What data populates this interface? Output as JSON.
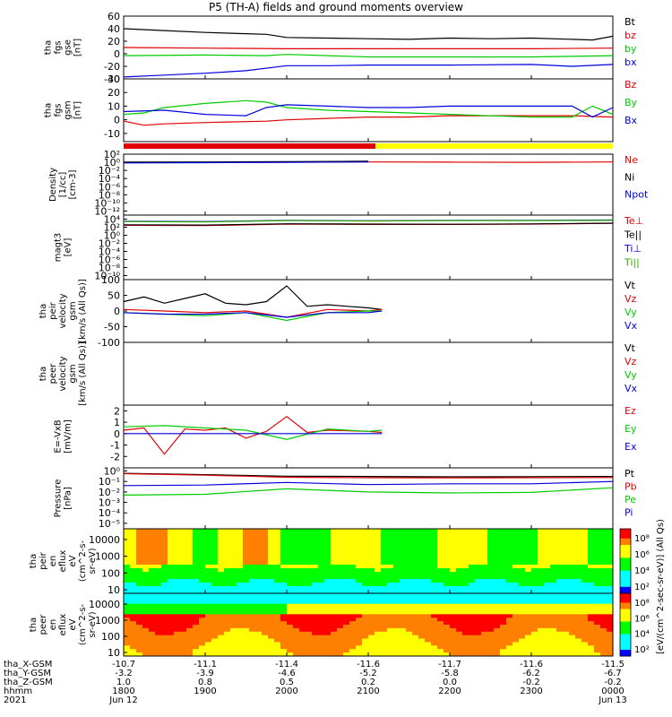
{
  "title": "P5 (TH-A) fields and ground moments overview",
  "colors": {
    "black": "#000000",
    "red": "#e00000",
    "green": "#00cc00",
    "blue": "#0000dd",
    "yellow": "#ffff00",
    "dark_green": "#33aa00"
  },
  "chart_data": [
    {
      "type": "line",
      "panel": "fgs-gse",
      "ylabel": [
        "tha",
        "fgs",
        "gse",
        "[nT]"
      ],
      "ylim": [
        -40,
        60
      ],
      "ytick_labels": [
        "60",
        "40",
        "20",
        "0",
        "-20",
        "-40"
      ],
      "ytick_values": [
        60,
        40,
        20,
        0,
        -20,
        -40
      ],
      "series": [
        {
          "name": "Bt",
          "color": "black",
          "x": [
            1800,
            1830,
            1900,
            1930,
            1945,
            2000,
            2030,
            2100,
            2130,
            2200,
            2230,
            2300,
            2330,
            2345,
            0
          ],
          "values": [
            40,
            37,
            34,
            32,
            31,
            26,
            25,
            24,
            23,
            25,
            24,
            25,
            23,
            22,
            28
          ]
        },
        {
          "name": "bz",
          "color": "red",
          "x": [
            1800,
            1900,
            2000,
            2100,
            2200,
            2300,
            0
          ],
          "values": [
            10,
            9,
            8,
            8,
            8,
            8,
            9
          ]
        },
        {
          "name": "by",
          "color": "green",
          "x": [
            1800,
            1900,
            1945,
            2000,
            2100,
            2200,
            2300,
            0
          ],
          "values": [
            -3,
            -2,
            -3,
            -1,
            -5,
            -5,
            -5,
            -3
          ]
        },
        {
          "name": "bx",
          "color": "blue",
          "x": [
            1800,
            1830,
            1900,
            1930,
            2000,
            2030,
            2100,
            2200,
            2300,
            2330,
            0
          ],
          "values": [
            -37,
            -34,
            -31,
            -27,
            -19,
            -19,
            -18,
            -18,
            -17,
            -20,
            -17
          ]
        }
      ]
    },
    {
      "type": "line",
      "panel": "fgs-gsm",
      "ylabel": [
        "tha",
        "fgs",
        "gsm",
        "[nT]"
      ],
      "ylim": [
        -16,
        30
      ],
      "ytick_labels": [
        "30",
        "20",
        "10",
        "0",
        "-10"
      ],
      "ytick_values": [
        30,
        20,
        10,
        0,
        -10
      ],
      "series": [
        {
          "name": "Bz",
          "color": "red",
          "x": [
            1800,
            1815,
            1830,
            1900,
            1945,
            2000,
            2030,
            2100,
            2130,
            2200,
            2230,
            2300,
            2330,
            0
          ],
          "values": [
            -1,
            -4,
            -3,
            -2,
            -1,
            0,
            1,
            2,
            2,
            3,
            3,
            3,
            3,
            2
          ]
        },
        {
          "name": "By",
          "color": "green",
          "x": [
            1800,
            1815,
            1830,
            1900,
            1930,
            1945,
            2000,
            2030,
            2100,
            2130,
            2200,
            2300,
            2330,
            2345,
            0
          ],
          "values": [
            4,
            5,
            9,
            12,
            14,
            13,
            9,
            7,
            6,
            5,
            4,
            2,
            2,
            10,
            4
          ]
        },
        {
          "name": "Bx",
          "color": "blue",
          "x": [
            1800,
            1830,
            1900,
            1930,
            1945,
            2000,
            2030,
            2100,
            2130,
            2200,
            2230,
            2300,
            2330,
            2345,
            0
          ],
          "values": [
            6,
            7,
            4,
            3,
            9,
            11,
            10,
            9,
            9,
            10,
            10,
            10,
            10,
            2,
            9
          ]
        }
      ]
    },
    {
      "type": "line",
      "panel": "density",
      "scale": "log",
      "ylabel": [
        "Density",
        "[1/cc]",
        "[cm-3]"
      ],
      "ylim": [
        1e-13,
        100
      ],
      "ytick_labels": [
        "10²",
        "10⁰",
        "10⁻²",
        "10⁻⁴",
        "10⁻⁶",
        "10⁻⁸",
        "10⁻¹⁰",
        "10⁻¹²"
      ],
      "ytick_values": [
        100,
        1,
        0.01,
        0.0001,
        1e-06,
        1e-08,
        1e-10,
        1e-12
      ],
      "series": [
        {
          "name": "Ne",
          "color": "red",
          "x": [
            1800,
            1900,
            2000,
            2100,
            2200,
            2300,
            0
          ],
          "values": [
            0.9,
            1,
            1.1,
            1.2,
            1.1,
            1.0,
            1.2
          ]
        },
        {
          "name": "Ni",
          "color": "black",
          "x": [
            1800,
            1900,
            2000,
            2100
          ],
          "values": [
            1.1,
            1.2,
            1.4,
            1.8
          ]
        },
        {
          "name": "Npot",
          "color": "blue",
          "x": [
            1800,
            1900,
            2000,
            2100
          ],
          "values": [
            0.7,
            0.8,
            1.0,
            1.2
          ]
        }
      ]
    },
    {
      "type": "line",
      "panel": "temperature",
      "scale": "log",
      "ylabel": [
        "magt3",
        "[eV]"
      ],
      "ylim": [
        1e-11,
        100000
      ],
      "ytick_labels": [
        "10⁴",
        "10²",
        "10⁰",
        "10⁻²",
        "10⁻⁴",
        "10⁻⁶",
        "10⁻⁸",
        "10⁻¹⁰"
      ],
      "ytick_values": [
        10000,
        100,
        1,
        0.01,
        0.0001,
        1e-06,
        1e-08,
        1e-10
      ],
      "series": [
        {
          "name": "Te⊥",
          "color": "red",
          "x": [
            1800,
            1900,
            2000,
            2100,
            2200,
            2300,
            0
          ],
          "values": [
            300,
            250,
            600,
            500,
            500,
            600,
            900
          ]
        },
        {
          "name": "Te||",
          "color": "black",
          "x": [
            1800,
            1900,
            2000,
            2100,
            2200,
            2300,
            0
          ],
          "values": [
            400,
            350,
            700,
            600,
            550,
            650,
            1000
          ]
        },
        {
          "name": "Ti⊥",
          "color": "blue",
          "x": [
            1800,
            1900,
            2000,
            2100,
            2200,
            2300,
            0
          ],
          "values": [
            3000,
            2500,
            5000,
            4000,
            5000,
            5000,
            6000
          ]
        },
        {
          "name": "Ti||",
          "color": "dark_green",
          "x": [
            1800,
            1900,
            2000,
            2100,
            2200,
            2300,
            0
          ],
          "values": [
            2500,
            2000,
            4500,
            3500,
            4500,
            4500,
            5000
          ]
        }
      ]
    },
    {
      "type": "line",
      "panel": "peir-velocity",
      "ylabel": [
        "tha",
        "peir",
        "velocity",
        "gsm",
        "[km/s (All Qs)]"
      ],
      "ylim": [
        -100,
        100
      ],
      "ytick_labels": [
        "100",
        "50",
        "0",
        "-50",
        "-100"
      ],
      "ytick_values": [
        100,
        50,
        0,
        -50,
        -100
      ],
      "series": [
        {
          "name": "Vt",
          "color": "black",
          "x": [
            1800,
            1815,
            1830,
            1845,
            1900,
            1915,
            1930,
            1945,
            2000,
            2015,
            2030,
            2045,
            2100,
            2110
          ],
          "values": [
            30,
            45,
            25,
            40,
            55,
            25,
            20,
            30,
            80,
            15,
            20,
            15,
            10,
            5
          ]
        },
        {
          "name": "Vz",
          "color": "red",
          "x": [
            1800,
            1830,
            1900,
            1930,
            2000,
            2030,
            2100,
            2110
          ],
          "values": [
            5,
            0,
            -5,
            0,
            -20,
            5,
            0,
            5
          ]
        },
        {
          "name": "Vy",
          "color": "green",
          "x": [
            1800,
            1830,
            1900,
            1930,
            2000,
            2030,
            2100,
            2110
          ],
          "values": [
            -5,
            -10,
            -15,
            -5,
            -30,
            -5,
            0,
            0
          ]
        },
        {
          "name": "Vx",
          "color": "blue",
          "x": [
            1800,
            1830,
            1900,
            1930,
            2000,
            2030,
            2100,
            2110
          ],
          "values": [
            -5,
            -10,
            -10,
            -5,
            -20,
            -5,
            -5,
            0
          ]
        }
      ]
    },
    {
      "type": "line",
      "panel": "peer-velocity",
      "ylabel": [
        "tha",
        "peer",
        "velocity",
        "gsm",
        "[km/s (All Qs)]"
      ],
      "series": [
        {
          "name": "Vt",
          "color": "black"
        },
        {
          "name": "Vz",
          "color": "red"
        },
        {
          "name": "Vy",
          "color": "green"
        },
        {
          "name": "Vx",
          "color": "blue"
        }
      ]
    },
    {
      "type": "line",
      "panel": "e-field",
      "ylabel": [
        "E=-VxB",
        "[mV/m]"
      ],
      "ylim": [
        -3,
        2.5
      ],
      "ytick_labels": [
        "2",
        "1",
        "0",
        "-1",
        "-2"
      ],
      "ytick_values": [
        2,
        1,
        0,
        -1,
        -2
      ],
      "series": [
        {
          "name": "Ez",
          "color": "red",
          "x": [
            1800,
            1815,
            1830,
            1845,
            1900,
            1915,
            1930,
            1945,
            2000,
            2015,
            2030,
            2100,
            2110
          ],
          "values": [
            0.3,
            0.5,
            -1.8,
            0.4,
            0.3,
            0.5,
            -0.4,
            0.2,
            1.5,
            0.1,
            0.3,
            0.2,
            0.1
          ]
        },
        {
          "name": "Ey",
          "color": "green",
          "x": [
            1800,
            1830,
            1900,
            1930,
            2000,
            2030,
            2100,
            2110
          ],
          "values": [
            0.6,
            0.7,
            0.5,
            0.3,
            -0.5,
            0.4,
            0.2,
            0.3
          ]
        },
        {
          "name": "Ex",
          "color": "blue",
          "x": [
            1800,
            1900,
            2000,
            2100,
            2110
          ],
          "values": [
            0,
            0,
            0,
            0,
            0
          ]
        }
      ]
    },
    {
      "type": "line",
      "panel": "pressure",
      "scale": "log",
      "ylabel": [
        "Pressure",
        "[nPa]"
      ],
      "ylim": [
        3e-06,
        2
      ],
      "ytick_labels": [
        "10⁰",
        "10⁻¹",
        "10⁻²",
        "10⁻³",
        "10⁻⁴",
        "10⁻⁵"
      ],
      "ytick_values": [
        1,
        0.1,
        0.01,
        0.001,
        0.0001,
        1e-05
      ],
      "series": [
        {
          "name": "Pt",
          "color": "black",
          "x": [
            1800,
            1900,
            2000,
            2100,
            2200,
            2300,
            0
          ],
          "values": [
            0.6,
            0.45,
            0.32,
            0.3,
            0.28,
            0.29,
            0.3
          ]
        },
        {
          "name": "Pb",
          "color": "red",
          "x": [
            1800,
            1900,
            2000,
            2100,
            2200,
            2300,
            0
          ],
          "values": [
            0.55,
            0.4,
            0.25,
            0.23,
            0.22,
            0.23,
            0.24
          ]
        },
        {
          "name": "Pe",
          "color": "green",
          "x": [
            1800,
            1900,
            2000,
            2100,
            2200,
            2300,
            0
          ],
          "values": [
            0.005,
            0.006,
            0.02,
            0.01,
            0.008,
            0.009,
            0.025
          ]
        },
        {
          "name": "Pi",
          "color": "blue",
          "x": [
            1800,
            1900,
            2000,
            2100,
            2200,
            2300,
            0
          ],
          "values": [
            0.04,
            0.045,
            0.08,
            0.05,
            0.06,
            0.06,
            0.1
          ]
        }
      ]
    },
    {
      "type": "heatmap",
      "panel": "peir-spectrogram",
      "ylabel": [
        "tha",
        "peir",
        "en",
        "eflux",
        "eV",
        "(cm^2-s-",
        "sr-eV)"
      ],
      "ytick_labels": [
        "10000",
        "1000",
        "100",
        "10"
      ],
      "colorbar_label": "[eV/(cm^2-sec-sr-eV)] (All Qs)"
    },
    {
      "type": "heatmap",
      "panel": "peer-spectrogram",
      "ylabel": [
        "tha",
        "peer",
        "en",
        "eflux",
        "eV",
        "(cm^2-s-",
        "sr-eV)"
      ],
      "ytick_labels": [
        "10000",
        "1000",
        "100",
        "10"
      ],
      "colorbar_label": "[eV/(cm^2-sec-sr-eV)] (All Qs)"
    }
  ],
  "colorbars": [
    {
      "tick_labels": [
        "10⁸",
        "10⁶",
        "10⁴",
        "10²"
      ]
    },
    {
      "tick_labels": [
        "10⁸",
        "10⁶",
        "10⁴",
        "10²"
      ]
    }
  ],
  "xaxis": {
    "row_labels": [
      "tha_X-GSM",
      "tha_Y-GSM",
      "tha_Z-GSM",
      "hhmm",
      "2021"
    ],
    "columns": [
      {
        "v": [
          "-10.7",
          "-3.2",
          "1.0",
          "1800",
          "Jun 12"
        ]
      },
      {
        "v": [
          "-11.1",
          "-3.9",
          "0.8",
          "1900",
          ""
        ]
      },
      {
        "v": [
          "-11.4",
          "-4.6",
          "0.5",
          "2000",
          ""
        ]
      },
      {
        "v": [
          "-11.6",
          "-5.2",
          "0.2",
          "2100",
          ""
        ]
      },
      {
        "v": [
          "-11.7",
          "-5.8",
          "0.0",
          "2200",
          ""
        ]
      },
      {
        "v": [
          "-11.6",
          "-6.2",
          "-0.2",
          "2300",
          ""
        ]
      },
      {
        "v": [
          "-11.5",
          "-6.7",
          "-0.2",
          "0000",
          "Jun 13"
        ]
      }
    ]
  }
}
